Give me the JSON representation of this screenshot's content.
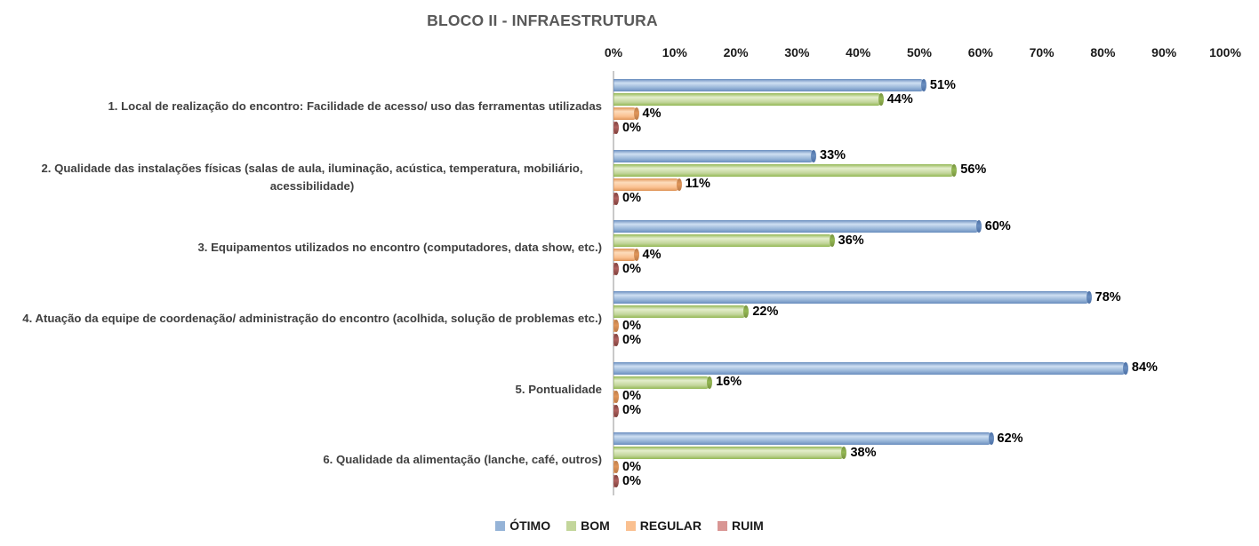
{
  "chart_data": {
    "type": "bar",
    "orientation": "horizontal",
    "title": "BLOCO II - INFRAESTRUTURA",
    "title_color": "#595959",
    "categories": [
      "1. Local de realização do encontro: Facilidade de acesso/ uso das ferramentas utilizadas",
      "2. Qualidade das instalações físicas (salas de aula, iluminação, acústica, temperatura, mobiliário, acessibilidade)",
      "3. Equipamentos utilizados no encontro (computadores, data show, etc.)",
      "4. Atuação da equipe de coordenação/ administração do encontro (acolhida, solução de problemas etc.)",
      "5. Pontualidade",
      "6. Qualidade da alimentação (lanche, café, outros)"
    ],
    "series": [
      {
        "name": "ÓTIMO",
        "values": [
          51,
          33,
          60,
          78,
          84,
          62
        ],
        "colors": {
          "fill": "#95B3D7",
          "edge": "#6A8EBF",
          "highlight": "#CEDFF2",
          "cap": "#4A6FA5"
        }
      },
      {
        "name": "BOM",
        "values": [
          44,
          56,
          36,
          22,
          16,
          38
        ],
        "colors": {
          "fill": "#C3D69B",
          "edge": "#94B855",
          "highlight": "#E4EECC",
          "cap": "#76923C"
        }
      },
      {
        "name": "REGULAR",
        "values": [
          4,
          11,
          4,
          0,
          0,
          0
        ],
        "colors": {
          "fill": "#FAC090",
          "edge": "#E0965A",
          "highlight": "#FDDCBB",
          "cap": "#B97A48"
        }
      },
      {
        "name": "RUIM",
        "values": [
          0,
          0,
          0,
          0,
          0,
          0
        ],
        "colors": {
          "fill": "#D99694",
          "edge": "#B06260",
          "highlight": "#E9BCBA",
          "cap": "#7B3F3A"
        }
      }
    ],
    "x_axis": {
      "tick_labels": [
        "0%",
        "10%",
        "20%",
        "30%",
        "40%",
        "50%",
        "60%",
        "70%",
        "80%",
        "90%",
        "100%"
      ],
      "min": 0,
      "max": 100
    },
    "data_label_suffix": "%",
    "legend_position": "bottom",
    "gridlines": false
  }
}
